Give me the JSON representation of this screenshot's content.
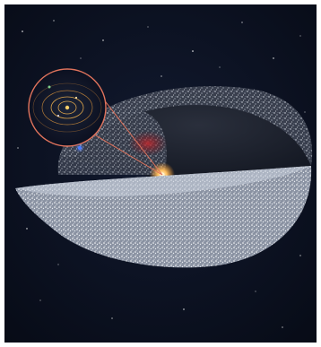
{
  "image": {
    "kind": "astronomical-illustration",
    "subject": "oort-cloud-cutaway",
    "elements": [
      "starfield-background",
      "oort-cloud-shell",
      "inner-torus-cloud",
      "sun-glow",
      "solar-system-inset",
      "inset-connector-lines",
      "planet-orbits"
    ],
    "colors": {
      "space": "#0a0f1f",
      "cloud": "#cfd6e2",
      "sun": "#ffb347",
      "inset_ring": "#e0735c",
      "orbit_lines": "#d9a24a",
      "red_nebula": "#b0242a",
      "blue_star": "#4a7bff"
    }
  }
}
